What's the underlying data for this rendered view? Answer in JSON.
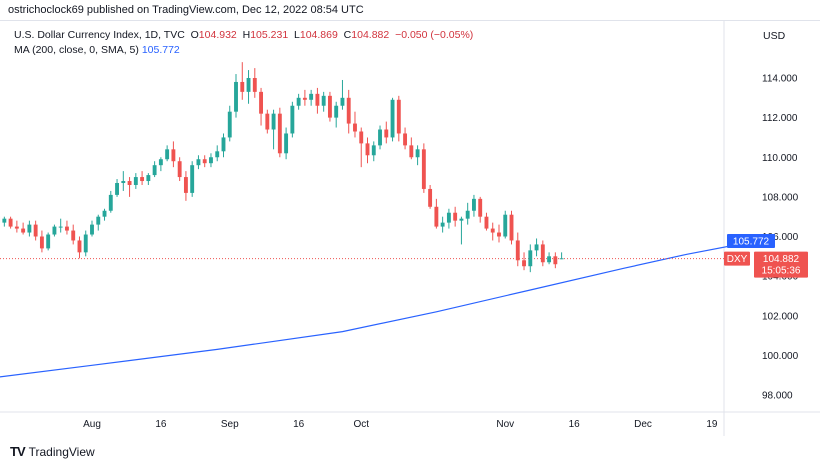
{
  "credit": "ostrichoclock69 published on TradingView.com, Dec 12, 2022 08:54 UTC",
  "legend": {
    "symbol": "U.S. Dollar Currency Index, 1D, TVC",
    "o_label": "O",
    "o": "104.932",
    "h_label": "H",
    "h": "105.231",
    "l_label": "L",
    "l": "104.869",
    "c_label": "C",
    "c": "104.882",
    "change": "−0.050 (−0.05%)",
    "ma_text": "MA (200, close, 0, SMA, 5)",
    "ma_value": "105.772"
  },
  "currency": "USD",
  "brand": "TradingView",
  "colors": {
    "up": "#26a69a",
    "down": "#ef5350",
    "ma": "#2962ff",
    "price_line": "#ef5350",
    "label_bg": "#ef5350",
    "ma_label_bg": "#2962ff"
  },
  "chart_data": {
    "type": "candlestick",
    "y_axis": {
      "ticks": [
        98,
        100,
        102,
        104,
        106,
        108,
        110,
        112,
        114
      ],
      "tick_labels": [
        "98.000",
        "100.000",
        "102.000",
        "104.000",
        "106.000",
        "108.000",
        "110.000",
        "112.000",
        "114.000"
      ],
      "ylim": [
        97.2,
        116.5
      ]
    },
    "x_axis": {
      "tick_labels": [
        "Aug",
        "16",
        "Sep",
        "16",
        "Oct",
        "Nov",
        "16",
        "Dec",
        "19"
      ],
      "tick_indices": [
        20,
        31,
        42,
        53,
        63,
        86,
        97,
        108,
        119
      ]
    },
    "last_price": {
      "symbol": "DXY",
      "value": "104.882",
      "countdown": "15:05:36"
    },
    "ma_label": "105.772",
    "candles": [
      [
        107.3,
        108.0,
        107.2,
        107.8
      ],
      [
        107.8,
        108.0,
        107.0,
        107.3
      ],
      [
        107.4,
        107.5,
        106.6,
        106.9
      ],
      [
        106.9,
        107.3,
        106.5,
        106.9
      ],
      [
        106.9,
        107.5,
        106.6,
        107.0
      ],
      [
        107.0,
        107.2,
        106.5,
        106.7
      ],
      [
        106.7,
        107.0,
        106.5,
        106.9
      ],
      [
        106.9,
        107.0,
        106.4,
        106.5
      ],
      [
        106.5,
        106.8,
        106.2,
        106.4
      ],
      [
        106.4,
        106.7,
        106.1,
        106.2
      ],
      [
        106.2,
        106.8,
        106.0,
        106.6
      ],
      [
        106.6,
        106.8,
        105.8,
        106.0
      ],
      [
        106.0,
        106.3,
        105.2,
        105.4
      ],
      [
        105.4,
        106.2,
        105.3,
        106.1
      ],
      [
        106.1,
        106.6,
        106.0,
        106.5
      ],
      [
        106.5,
        106.9,
        106.2,
        106.5
      ],
      [
        106.5,
        106.8,
        106.1,
        106.3
      ],
      [
        106.3,
        106.6,
        105.6,
        105.8
      ],
      [
        105.8,
        106.0,
        104.9,
        105.2
      ],
      [
        105.2,
        106.3,
        105.0,
        106.1
      ],
      [
        106.1,
        106.8,
        106.0,
        106.6
      ],
      [
        106.6,
        107.1,
        106.3,
        107.0
      ],
      [
        107.0,
        107.4,
        106.8,
        107.3
      ],
      [
        107.3,
        108.3,
        107.2,
        108.1
      ],
      [
        108.1,
        108.9,
        108.0,
        108.7
      ],
      [
        108.7,
        109.3,
        108.3,
        108.8
      ],
      [
        108.8,
        109.0,
        108.0,
        108.6
      ],
      [
        108.6,
        109.2,
        108.4,
        109.0
      ],
      [
        109.0,
        109.3,
        108.6,
        108.8
      ],
      [
        108.8,
        109.2,
        108.6,
        109.1
      ],
      [
        109.1,
        109.8,
        109.0,
        109.6
      ],
      [
        109.6,
        110.0,
        109.3,
        109.9
      ],
      [
        109.9,
        110.6,
        109.8,
        110.4
      ],
      [
        110.4,
        110.8,
        109.5,
        109.8
      ],
      [
        109.8,
        110.0,
        108.8,
        109.0
      ],
      [
        109.0,
        109.3,
        107.8,
        108.2
      ],
      [
        108.2,
        109.8,
        108.0,
        109.6
      ],
      [
        109.6,
        110.1,
        109.4,
        109.9
      ],
      [
        109.9,
        110.1,
        109.5,
        109.7
      ],
      [
        109.7,
        110.2,
        109.5,
        110.0
      ],
      [
        110.0,
        110.6,
        109.8,
        110.3
      ],
      [
        110.3,
        111.2,
        110.0,
        111.0
      ],
      [
        111.0,
        112.6,
        110.8,
        112.3
      ],
      [
        112.3,
        114.2,
        112.0,
        113.8
      ],
      [
        113.8,
        114.8,
        112.9,
        113.3
      ],
      [
        113.3,
        114.4,
        112.7,
        114.0
      ],
      [
        114.0,
        114.5,
        113.0,
        113.3
      ],
      [
        113.3,
        113.5,
        111.6,
        112.2
      ],
      [
        112.2,
        112.4,
        111.2,
        111.4
      ],
      [
        111.4,
        112.4,
        110.4,
        112.2
      ],
      [
        112.2,
        112.5,
        110.0,
        110.2
      ],
      [
        110.2,
        111.5,
        109.9,
        111.2
      ],
      [
        111.2,
        112.8,
        111.0,
        112.6
      ],
      [
        112.6,
        113.2,
        112.4,
        113.0
      ],
      [
        113.0,
        113.4,
        112.6,
        112.9
      ],
      [
        112.9,
        113.4,
        112.6,
        113.2
      ],
      [
        113.2,
        113.5,
        112.2,
        112.6
      ],
      [
        112.6,
        113.3,
        112.3,
        113.1
      ],
      [
        113.1,
        113.3,
        111.8,
        112.0
      ],
      [
        112.0,
        112.8,
        111.5,
        112.6
      ],
      [
        112.6,
        113.9,
        112.4,
        113.0
      ],
      [
        113.0,
        113.4,
        111.2,
        111.7
      ],
      [
        111.7,
        112.3,
        111.0,
        111.3
      ],
      [
        111.3,
        111.5,
        109.5,
        110.7
      ],
      [
        110.7,
        111.0,
        109.7,
        110.1
      ],
      [
        110.1,
        110.8,
        109.8,
        110.6
      ],
      [
        110.6,
        111.6,
        110.4,
        111.4
      ],
      [
        111.4,
        111.8,
        110.7,
        111.0
      ],
      [
        111.0,
        113.0,
        110.8,
        112.9
      ],
      [
        112.9,
        113.1,
        110.8,
        111.2
      ],
      [
        111.2,
        111.5,
        110.4,
        110.6
      ],
      [
        110.6,
        111.0,
        109.9,
        110.0
      ],
      [
        110.0,
        110.6,
        109.6,
        110.4
      ],
      [
        110.4,
        110.7,
        108.2,
        108.4
      ],
      [
        108.4,
        108.6,
        107.4,
        107.5
      ],
      [
        107.5,
        107.9,
        106.4,
        106.5
      ],
      [
        106.5,
        107.0,
        106.2,
        106.7
      ],
      [
        106.7,
        107.4,
        106.4,
        107.2
      ],
      [
        107.2,
        107.5,
        106.5,
        106.8
      ],
      [
        106.8,
        107.0,
        105.6,
        106.9
      ],
      [
        106.9,
        107.7,
        106.6,
        107.3
      ],
      [
        107.3,
        108.1,
        107.0,
        107.9
      ],
      [
        107.9,
        108.0,
        106.7,
        107.0
      ],
      [
        107.0,
        107.2,
        106.3,
        106.4
      ],
      [
        106.4,
        106.7,
        105.8,
        106.2
      ],
      [
        106.2,
        106.6,
        105.7,
        106.0
      ],
      [
        106.0,
        107.3,
        105.9,
        107.1
      ],
      [
        107.1,
        107.3,
        105.6,
        105.8
      ],
      [
        105.8,
        106.2,
        104.5,
        104.8
      ],
      [
        104.8,
        105.2,
        104.3,
        104.5
      ],
      [
        104.5,
        105.6,
        104.2,
        105.3
      ],
      [
        105.3,
        105.9,
        105.0,
        105.6
      ],
      [
        105.6,
        105.8,
        104.5,
        104.7
      ],
      [
        104.7,
        105.2,
        104.6,
        105.0
      ],
      [
        105.0,
        105.2,
        104.4,
        104.6
      ],
      [
        104.9,
        105.2,
        104.9,
        104.9
      ]
    ],
    "ma_line": {
      "name": "MA (200, close, 0, SMA, 5)",
      "start_value": 98.7,
      "end_value": 105.77,
      "points": [
        [
          0,
          98.7
        ],
        [
          20,
          99.5
        ],
        [
          40,
          100.3
        ],
        [
          60,
          101.2
        ],
        [
          75,
          102.2
        ],
        [
          90,
          103.3
        ],
        [
          105,
          104.4
        ],
        [
          115,
          105.1
        ],
        [
          126,
          105.77
        ]
      ]
    }
  }
}
